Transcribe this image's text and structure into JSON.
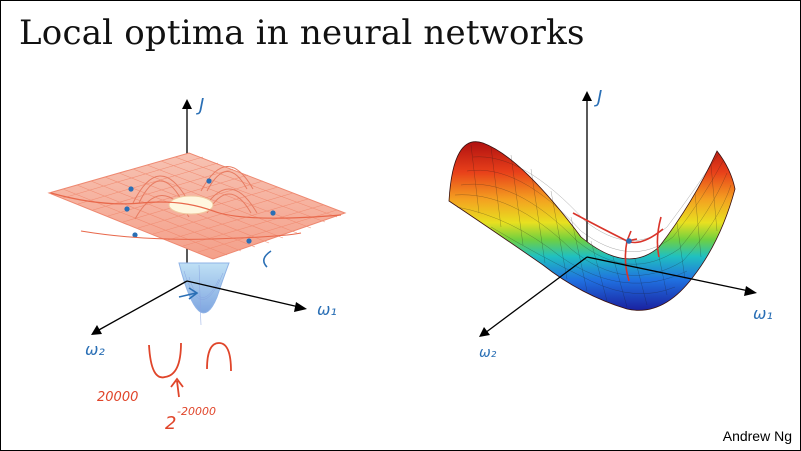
{
  "slide": {
    "title": "Local optima in neural networks",
    "author": "Andrew Ng"
  },
  "left_diagram": {
    "axis_j": "J",
    "axis_w1": "ω₁",
    "axis_w2": "ω₂",
    "note_a": "20000",
    "note_b": "2",
    "note_exponent": "-20000",
    "colors": {
      "ink_blue": "#2a6fb5",
      "ink_red": "#e0452a",
      "mesh": "#f08a70"
    }
  },
  "right_diagram": {
    "axis_j": "J",
    "axis_w1": "ω₁",
    "axis_w2": "ω₂",
    "colors": {
      "ink_blue": "#2a6fb5",
      "ink_red": "#d9342a"
    }
  }
}
